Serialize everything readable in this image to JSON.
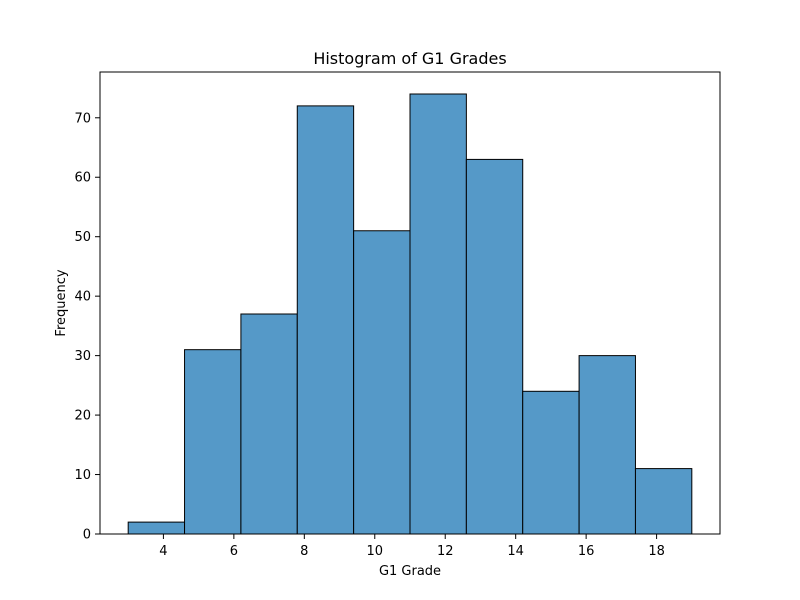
{
  "chart_data": {
    "type": "bar",
    "subtype": "histogram",
    "title": "Histogram of G1 Grades",
    "xlabel": "G1 Grade",
    "ylabel": "Frequency",
    "bin_edges": [
      3.0,
      4.6,
      6.2,
      7.8,
      9.4,
      11.0,
      12.6,
      14.2,
      15.8,
      17.4,
      19.0
    ],
    "values": [
      2,
      31,
      37,
      72,
      51,
      74,
      63,
      24,
      30,
      11
    ],
    "xlim": [
      2.2,
      19.8
    ],
    "ylim": [
      0,
      77.7
    ],
    "xticks": [
      4,
      6,
      8,
      10,
      12,
      14,
      16,
      18
    ],
    "yticks": [
      0,
      10,
      20,
      30,
      40,
      50,
      60,
      70
    ],
    "grid": false,
    "colors": {
      "bar_fill": "#5599c8",
      "bar_edge": "#000000",
      "axes_edge": "#000000"
    }
  }
}
